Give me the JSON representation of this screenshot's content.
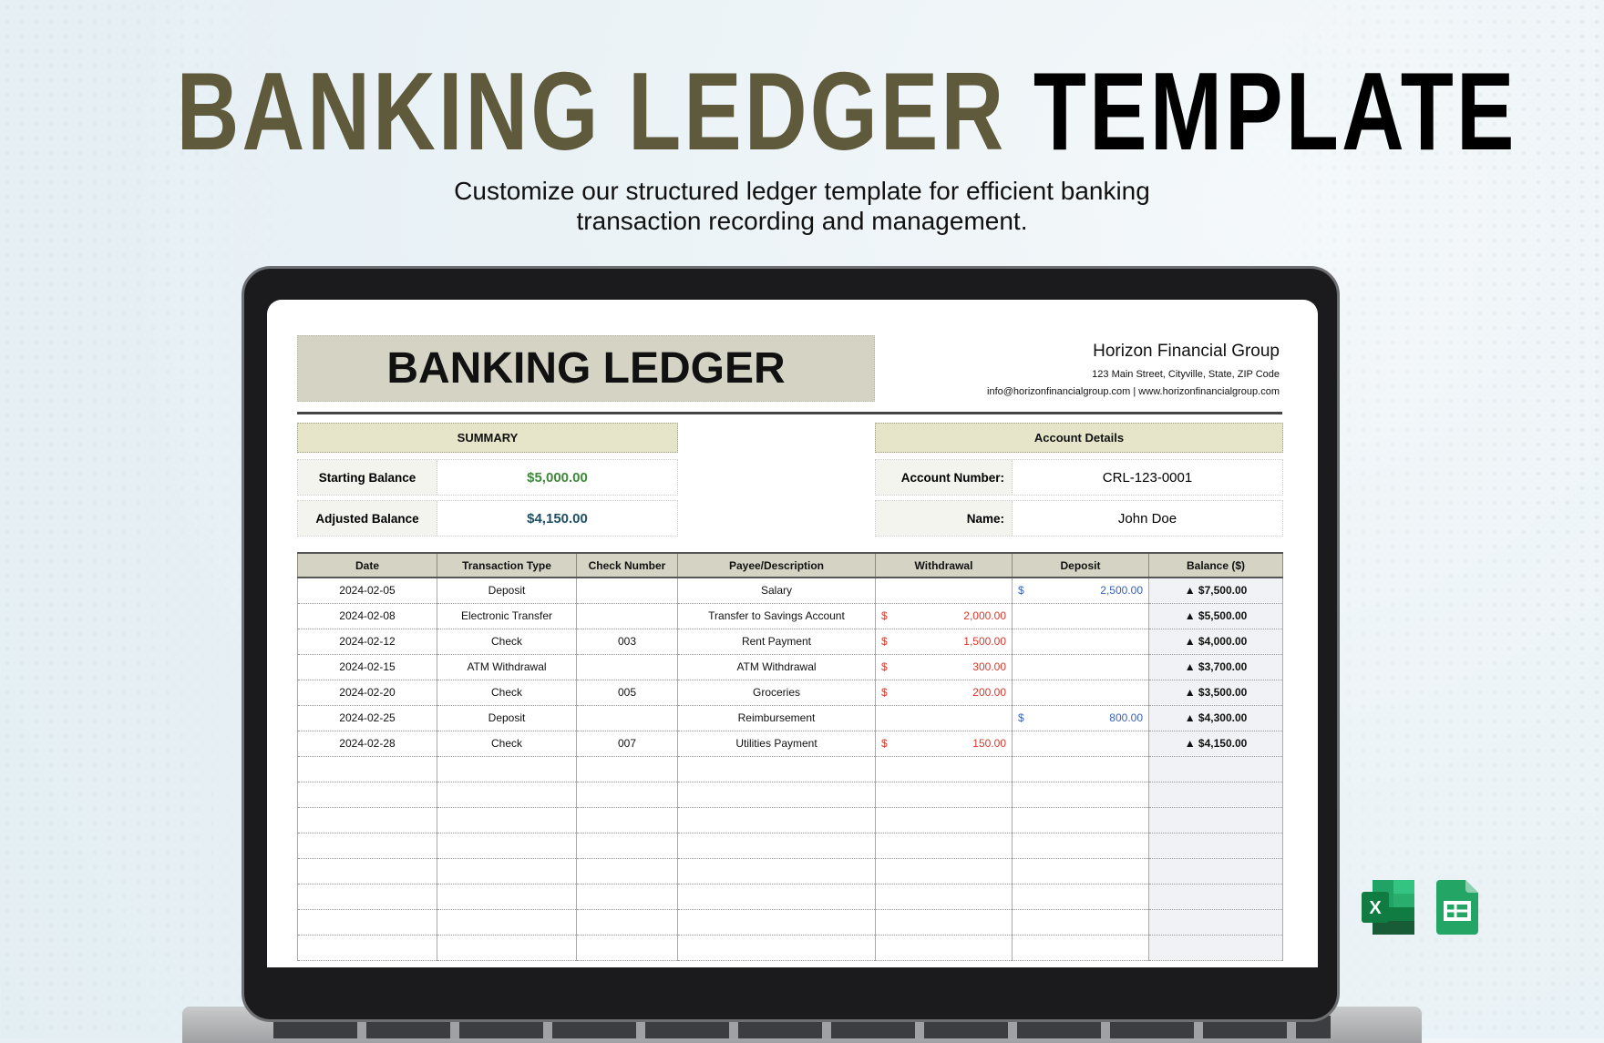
{
  "banner": {
    "title_part1": "BANKING LEDGER",
    "title_part2": "TEMPLATE",
    "subtitle_line1": "Customize our structured ledger template for efficient banking",
    "subtitle_line2": "transaction recording and management."
  },
  "sheet": {
    "title": "BANKING LEDGER",
    "company": "Horizon Financial Group",
    "address": "123 Main Street, Cityville, State, ZIP Code",
    "contact": "info@horizonfinancialgroup.com | www.horizonfinancialgroup.com"
  },
  "summary": {
    "heading": "SUMMARY",
    "starting_label": "Starting Balance",
    "starting_value": "$5,000.00",
    "adjusted_label": "Adjusted Balance",
    "adjusted_value": "$4,150.00",
    "starting_color": "#3d8a3a",
    "adjusted_color": "#1f4f63"
  },
  "account": {
    "heading": "Account Details",
    "number_label": "Account Number:",
    "number_value": "CRL-123-0001",
    "name_label": "Name:",
    "name_value": "John Doe"
  },
  "table": {
    "columns": [
      "Date",
      "Transaction Type",
      "Check Number",
      "Payee/Description",
      "Withdrawal",
      "Deposit",
      "Balance ($)"
    ],
    "currency_symbol": "$",
    "balance_marker": "▲",
    "rows": [
      {
        "date": "2024-02-05",
        "type": "Deposit",
        "check": "",
        "payee": "Salary",
        "withdrawal": "",
        "deposit": "2,500.00",
        "balance": "$7,500.00"
      },
      {
        "date": "2024-02-08",
        "type": "Electronic Transfer",
        "check": "",
        "payee": "Transfer to Savings Account",
        "withdrawal": "2,000.00",
        "deposit": "",
        "balance": "$5,500.00"
      },
      {
        "date": "2024-02-12",
        "type": "Check",
        "check": "003",
        "payee": "Rent Payment",
        "withdrawal": "1,500.00",
        "deposit": "",
        "balance": "$4,000.00"
      },
      {
        "date": "2024-02-15",
        "type": "ATM Withdrawal",
        "check": "",
        "payee": "ATM Withdrawal",
        "withdrawal": "300.00",
        "deposit": "",
        "balance": "$3,700.00"
      },
      {
        "date": "2024-02-20",
        "type": "Check",
        "check": "005",
        "payee": "Groceries",
        "withdrawal": "200.00",
        "deposit": "",
        "balance": "$3,500.00"
      },
      {
        "date": "2024-02-25",
        "type": "Deposit",
        "check": "",
        "payee": "Reimbursement",
        "withdrawal": "",
        "deposit": "800.00",
        "balance": "$4,300.00"
      },
      {
        "date": "2024-02-28",
        "type": "Check",
        "check": "007",
        "payee": "Utilities Payment",
        "withdrawal": "150.00",
        "deposit": "",
        "balance": "$4,150.00"
      }
    ]
  },
  "icons": {
    "excel": "microsoft-excel-icon",
    "sheets": "google-sheets-icon",
    "excel_letter": "X"
  }
}
